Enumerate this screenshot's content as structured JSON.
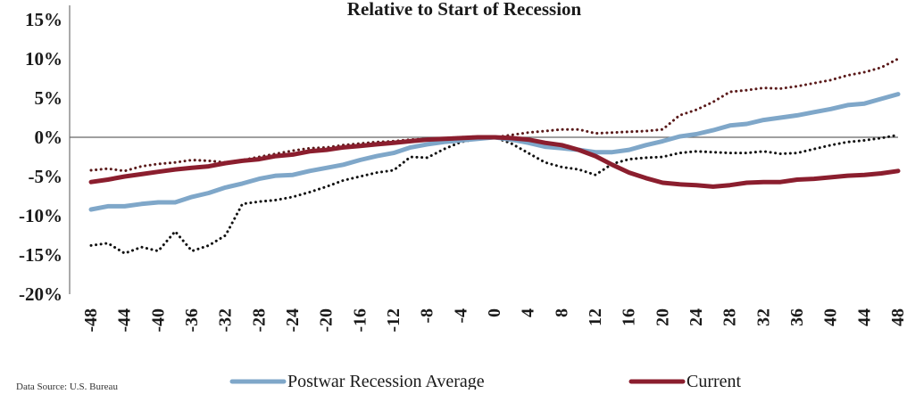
{
  "chart_data": {
    "type": "line",
    "title": "Relative to Start of Recession",
    "source_note": "Data Source: U.S. Bureau",
    "xlabel": "",
    "ylabel": "",
    "xlim": [
      -48,
      48
    ],
    "ylim": [
      -20,
      15
    ],
    "x_ticks": [
      -48,
      -44,
      -40,
      -36,
      -32,
      -28,
      -24,
      -20,
      -16,
      -12,
      -8,
      -4,
      0,
      4,
      8,
      12,
      16,
      20,
      24,
      28,
      32,
      36,
      40,
      44,
      48
    ],
    "y_ticks": [
      {
        "value": 15,
        "label": "15%"
      },
      {
        "value": 10,
        "label": "10%"
      },
      {
        "value": 5,
        "label": "5%"
      },
      {
        "value": 0,
        "label": "0%"
      },
      {
        "value": -5,
        "label": "-5%"
      },
      {
        "value": -10,
        "label": "-10%"
      },
      {
        "value": -15,
        "label": "-15%"
      },
      {
        "value": -20,
        "label": "-20%"
      }
    ],
    "legend_position": "bottom",
    "series": [
      {
        "name": "Postwar Recession Average",
        "color": "#7fa7c9",
        "style": "solid",
        "x": [
          -48,
          -46,
          -44,
          -42,
          -40,
          -38,
          -36,
          -34,
          -32,
          -30,
          -28,
          -26,
          -24,
          -22,
          -20,
          -18,
          -16,
          -14,
          -12,
          -10,
          -8,
          -6,
          -4,
          -2,
          0,
          2,
          4,
          6,
          8,
          10,
          12,
          14,
          16,
          18,
          20,
          22,
          24,
          26,
          28,
          30,
          32,
          34,
          36,
          38,
          40,
          42,
          44,
          46,
          48
        ],
        "values": [
          -9.2,
          -8.8,
          -8.8,
          -8.5,
          -8.3,
          -8.3,
          -7.6,
          -7.1,
          -6.4,
          -5.9,
          -5.3,
          -4.9,
          -4.8,
          -4.3,
          -3.9,
          -3.5,
          -2.9,
          -2.4,
          -2.0,
          -1.3,
          -0.9,
          -0.6,
          -0.4,
          -0.2,
          0.0,
          -0.3,
          -0.7,
          -1.2,
          -1.4,
          -1.6,
          -1.9,
          -1.9,
          -1.6,
          -1.0,
          -0.5,
          0.1,
          0.4,
          0.9,
          1.5,
          1.7,
          2.2,
          2.5,
          2.8,
          3.2,
          3.6,
          4.1,
          4.3,
          4.9,
          5.5
        ]
      },
      {
        "name": "Current",
        "color": "#8b1e2e",
        "style": "solid",
        "x": [
          -48,
          -46,
          -44,
          -42,
          -40,
          -38,
          -36,
          -34,
          -32,
          -30,
          -28,
          -26,
          -24,
          -22,
          -20,
          -18,
          -16,
          -14,
          -12,
          -10,
          -8,
          -6,
          -4,
          -2,
          0,
          2,
          4,
          6,
          8,
          10,
          12,
          14,
          16,
          18,
          20,
          22,
          24,
          26,
          28,
          30,
          32,
          34,
          36,
          38,
          40,
          42,
          44,
          46,
          48
        ],
        "values": [
          -5.7,
          -5.4,
          -5.0,
          -4.7,
          -4.4,
          -4.1,
          -3.9,
          -3.7,
          -3.3,
          -3.0,
          -2.8,
          -2.4,
          -2.2,
          -1.8,
          -1.6,
          -1.3,
          -1.1,
          -0.9,
          -0.7,
          -0.5,
          -0.3,
          -0.2,
          -0.1,
          0.0,
          0.0,
          -0.1,
          -0.3,
          -0.7,
          -1.0,
          -1.6,
          -2.4,
          -3.5,
          -4.5,
          -5.2,
          -5.8,
          -6.0,
          -6.1,
          -6.3,
          -6.1,
          -5.8,
          -5.7,
          -5.7,
          -5.4,
          -5.3,
          -5.1,
          -4.9,
          -4.8,
          -4.6,
          -4.3
        ]
      },
      {
        "name": "",
        "color": "#111111",
        "style": "dotted",
        "x": [
          -48,
          -46,
          -44,
          -42,
          -40,
          -38,
          -36,
          -34,
          -32,
          -30,
          -28,
          -26,
          -24,
          -22,
          -20,
          -18,
          -16,
          -14,
          -12,
          -10,
          -8,
          -6,
          -4,
          -2,
          0,
          2,
          4,
          6,
          8,
          10,
          12,
          14,
          16,
          18,
          20,
          22,
          24,
          26,
          28,
          30,
          32,
          34,
          36,
          38,
          40,
          42,
          44,
          46,
          48
        ],
        "values": [
          -13.8,
          -13.5,
          -14.8,
          -14.0,
          -14.5,
          -12.0,
          -14.5,
          -13.8,
          -12.5,
          -8.5,
          -8.2,
          -8.0,
          -7.6,
          -7.0,
          -6.3,
          -5.5,
          -5.0,
          -4.5,
          -4.2,
          -2.5,
          -2.6,
          -1.5,
          -0.6,
          -0.2,
          0.0,
          -0.8,
          -2.0,
          -3.2,
          -3.8,
          -4.1,
          -4.8,
          -3.4,
          -2.8,
          -2.6,
          -2.5,
          -2.0,
          -1.8,
          -1.9,
          -2.0,
          -2.0,
          -1.8,
          -2.1,
          -2.0,
          -1.5,
          -1.0,
          -0.6,
          -0.4,
          -0.1,
          0.3
        ]
      },
      {
        "name": "",
        "color": "#5a1a1a",
        "style": "dotted",
        "x": [
          -48,
          -46,
          -44,
          -42,
          -40,
          -38,
          -36,
          -34,
          -32,
          -30,
          -28,
          -26,
          -24,
          -22,
          -20,
          -18,
          -16,
          -14,
          -12,
          -10,
          -8,
          -6,
          -4,
          -2,
          0,
          2,
          4,
          6,
          8,
          10,
          12,
          14,
          16,
          18,
          20,
          22,
          24,
          26,
          28,
          30,
          32,
          34,
          36,
          38,
          40,
          42,
          44,
          46,
          48
        ],
        "values": [
          -4.2,
          -4.0,
          -4.3,
          -3.7,
          -3.4,
          -3.2,
          -2.9,
          -3.0,
          -3.2,
          -2.9,
          -2.5,
          -2.1,
          -1.7,
          -1.4,
          -1.3,
          -1.0,
          -0.8,
          -0.6,
          -0.5,
          -0.3,
          -0.2,
          -0.1,
          0.0,
          0.1,
          0.0,
          0.3,
          0.6,
          0.8,
          1.0,
          1.0,
          0.5,
          0.6,
          0.7,
          0.8,
          1.0,
          2.8,
          3.5,
          4.5,
          5.8,
          6.0,
          6.3,
          6.2,
          6.5,
          6.9,
          7.3,
          7.9,
          8.3,
          8.9,
          10.0
        ]
      }
    ]
  }
}
